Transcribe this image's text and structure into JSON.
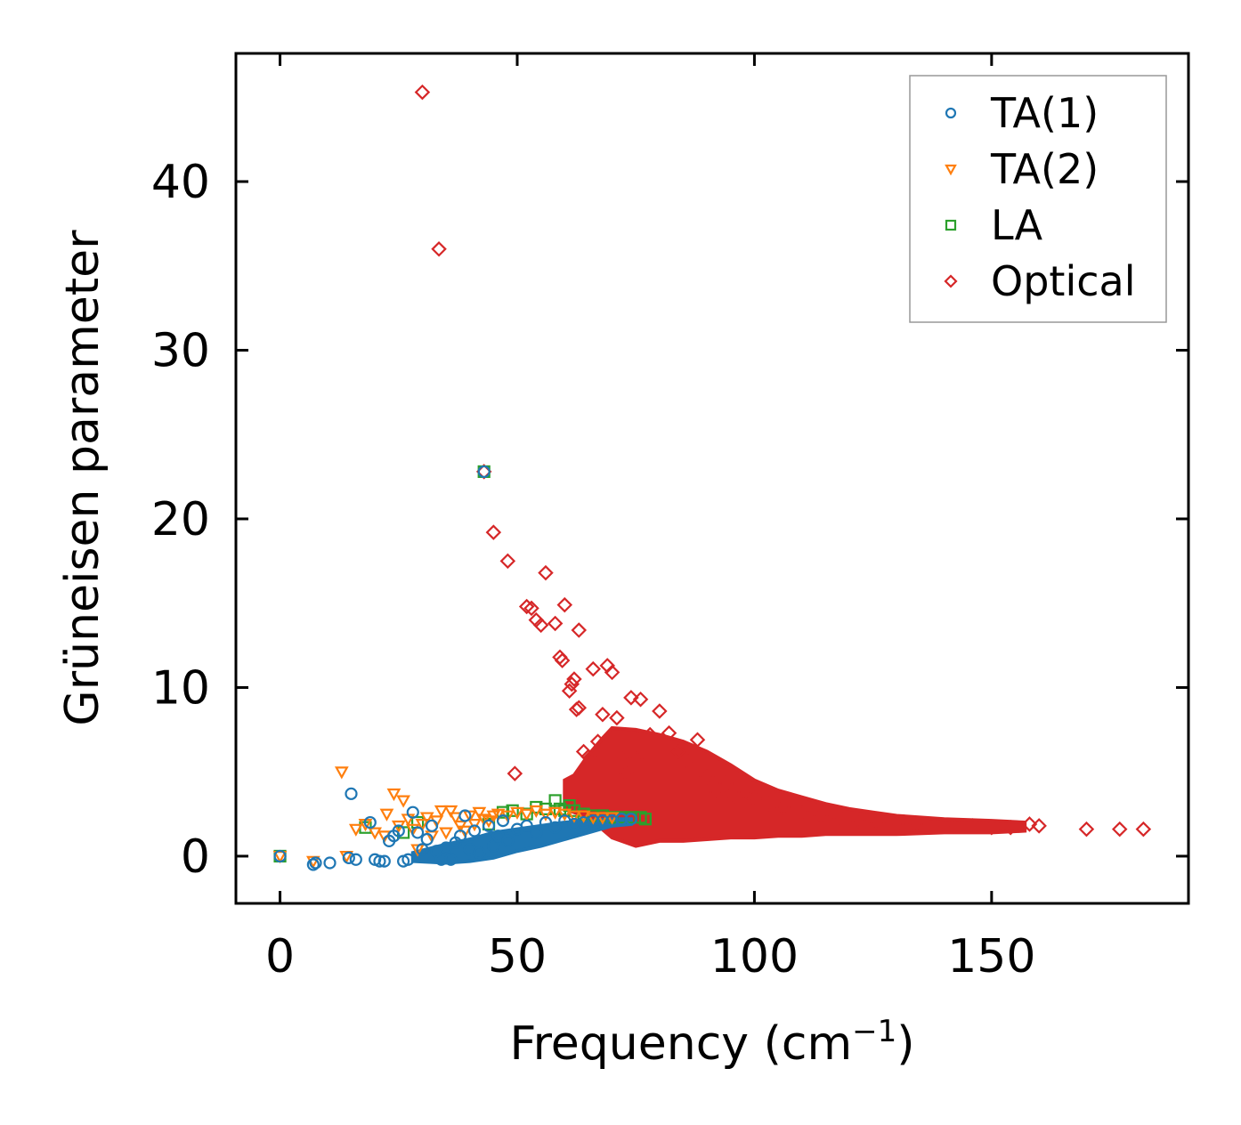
{
  "chart_data": {
    "type": "scatter",
    "title": "",
    "xlabel": "Frequency (cm",
    "xlabel_sup": "−1",
    "xlabel_close": ")",
    "ylabel": "Grüneisen parameter",
    "xlim": [
      -9.3,
      191.5
    ],
    "ylim": [
      -2.8,
      47.6
    ],
    "xticks": [
      0,
      50,
      100,
      150
    ],
    "yticks": [
      0,
      10,
      20,
      30,
      40
    ],
    "legend_position": "top-right",
    "series": [
      {
        "name": "TA(1)",
        "marker": "circle",
        "color": "#1f77b4",
        "points": [
          [
            0,
            0
          ],
          [
            7,
            -0.5
          ],
          [
            7.5,
            -0.4
          ],
          [
            10.5,
            -0.4
          ],
          [
            14.5,
            -0.1
          ],
          [
            15,
            3.7
          ],
          [
            16,
            -0.2
          ],
          [
            19,
            2
          ],
          [
            20,
            -0.2
          ],
          [
            21,
            -0.3
          ],
          [
            22,
            -0.3
          ],
          [
            23,
            0.9
          ],
          [
            24,
            1.2
          ],
          [
            25,
            1.5
          ],
          [
            26,
            -0.3
          ],
          [
            27,
            -0.2
          ],
          [
            28,
            2.6
          ],
          [
            29,
            1.4
          ],
          [
            30,
            0.4
          ],
          [
            31,
            1
          ],
          [
            32,
            1.8
          ],
          [
            33,
            0.3
          ],
          [
            34,
            -0.2
          ],
          [
            35,
            0.5
          ],
          [
            36,
            -0.2
          ],
          [
            37,
            0.8
          ],
          [
            38,
            1.2
          ],
          [
            39,
            2.4
          ],
          [
            40,
            0.4
          ],
          [
            41,
            1.5
          ],
          [
            42,
            0.2
          ],
          [
            43,
            22.8
          ],
          [
            44,
            1.8
          ],
          [
            45,
            0.6
          ],
          [
            46,
            1.2
          ],
          [
            47,
            2.1
          ],
          [
            48,
            0.9
          ],
          [
            50,
            1.6
          ],
          [
            52,
            1.8
          ],
          [
            54,
            1.4
          ],
          [
            56,
            2
          ],
          [
            58,
            1.7
          ],
          [
            60,
            2.1
          ],
          [
            62,
            1.9
          ],
          [
            64,
            2
          ],
          [
            66,
            2.1
          ],
          [
            68,
            2.1
          ],
          [
            70,
            2.1
          ],
          [
            72,
            2.2
          ],
          [
            74,
            2.2
          ]
        ]
      },
      {
        "name": "TA(2)",
        "marker": "triangle-down",
        "color": "#ff7f0e",
        "points": [
          [
            0,
            0
          ],
          [
            7,
            -0.3
          ],
          [
            13,
            5
          ],
          [
            14,
            0
          ],
          [
            16,
            1.6
          ],
          [
            18,
            1.9
          ],
          [
            20,
            1.4
          ],
          [
            22,
            1.2
          ],
          [
            22.5,
            2.5
          ],
          [
            24,
            3.7
          ],
          [
            25,
            1.8
          ],
          [
            26,
            3.3
          ],
          [
            27,
            2.2
          ],
          [
            28,
            1.6
          ],
          [
            29,
            0.4
          ],
          [
            30,
            1.9
          ],
          [
            31,
            2.3
          ],
          [
            32,
            1.2
          ],
          [
            33,
            2.1
          ],
          [
            34,
            2.7
          ],
          [
            35,
            1.4
          ],
          [
            36,
            2.7
          ],
          [
            37,
            2.3
          ],
          [
            38,
            1.8
          ],
          [
            39,
            1.5
          ],
          [
            40,
            2.4
          ],
          [
            41,
            1.9
          ],
          [
            42,
            2.6
          ],
          [
            43,
            2.2
          ],
          [
            44,
            2.1
          ],
          [
            45,
            2.4
          ],
          [
            46,
            2.5
          ],
          [
            48,
            2.4
          ],
          [
            50,
            2.6
          ],
          [
            52,
            2.5
          ],
          [
            54,
            2.7
          ],
          [
            56,
            2.5
          ],
          [
            58,
            2.6
          ],
          [
            60,
            2.5
          ],
          [
            62,
            2.4
          ],
          [
            64,
            2.4
          ],
          [
            66,
            2.3
          ],
          [
            68,
            2.3
          ],
          [
            70,
            2.3
          ]
        ]
      },
      {
        "name": "LA",
        "marker": "square",
        "color": "#2ca02c",
        "points": [
          [
            0,
            0
          ],
          [
            18,
            1.7
          ],
          [
            26,
            1.4
          ],
          [
            29,
            2
          ],
          [
            43,
            22.8
          ],
          [
            44,
            1.9
          ],
          [
            47,
            2.6
          ],
          [
            49,
            2.7
          ],
          [
            52,
            2.5
          ],
          [
            54,
            2.9
          ],
          [
            56,
            2.8
          ],
          [
            58,
            3.3
          ],
          [
            59,
            2.8
          ],
          [
            60,
            2.7
          ],
          [
            61,
            3
          ],
          [
            62,
            2.7
          ],
          [
            64,
            2.5
          ],
          [
            66,
            2.4
          ],
          [
            68,
            2.4
          ],
          [
            70,
            2.3
          ],
          [
            72,
            2.3
          ],
          [
            74,
            2.3
          ],
          [
            76,
            2.3
          ],
          [
            77,
            2.2
          ]
        ]
      },
      {
        "name": "Optical",
        "marker": "diamond",
        "color": "#d62728",
        "points": [
          [
            30,
            45.3
          ],
          [
            33.5,
            36
          ],
          [
            43,
            22.8
          ],
          [
            45,
            19.2
          ],
          [
            48,
            17.5
          ],
          [
            49.5,
            4.9
          ],
          [
            52,
            14.8
          ],
          [
            53,
            14.7
          ],
          [
            54,
            14
          ],
          [
            55,
            13.7
          ],
          [
            56,
            16.8
          ],
          [
            58,
            13.8
          ],
          [
            59,
            11.8
          ],
          [
            59.5,
            11.6
          ],
          [
            60,
            14.9
          ],
          [
            61,
            9.8
          ],
          [
            61.5,
            10.2
          ],
          [
            62,
            10.5
          ],
          [
            62.5,
            8.7
          ],
          [
            63,
            8.8
          ],
          [
            63,
            13.4
          ],
          [
            64,
            6.2
          ],
          [
            65,
            5.9
          ],
          [
            66,
            11.1
          ],
          [
            67,
            6.8
          ],
          [
            68,
            8.4
          ],
          [
            69,
            11.3
          ],
          [
            70,
            10.9
          ],
          [
            71,
            8.2
          ],
          [
            72,
            5.8
          ],
          [
            73,
            4.9
          ],
          [
            74,
            9.4
          ],
          [
            75,
            5.8
          ],
          [
            76,
            9.3
          ],
          [
            78,
            7.2
          ],
          [
            80,
            8.6
          ],
          [
            82,
            7.3
          ],
          [
            84,
            6.2
          ],
          [
            86,
            5.6
          ],
          [
            88,
            6.9
          ],
          [
            90,
            4.7
          ],
          [
            92,
            3.8
          ],
          [
            94,
            4.3
          ],
          [
            96,
            3.5
          ],
          [
            98,
            3.8
          ],
          [
            100,
            3.4
          ],
          [
            103,
            3.1
          ],
          [
            106,
            2.9
          ],
          [
            110,
            2.6
          ],
          [
            114,
            2.4
          ],
          [
            118,
            2.3
          ],
          [
            122,
            2.1
          ],
          [
            126,
            2
          ],
          [
            130,
            1.9
          ],
          [
            134,
            1.9
          ],
          [
            138,
            1.8
          ],
          [
            142,
            1.8
          ],
          [
            146,
            1.8
          ],
          [
            150,
            1.7
          ],
          [
            154,
            1.7
          ],
          [
            158,
            1.9
          ],
          [
            160,
            1.8
          ],
          [
            170,
            1.6
          ],
          [
            177,
            1.6
          ],
          [
            182,
            1.6
          ]
        ]
      }
    ],
    "optical_band": {
      "upper": [
        [
          60,
          4.5
        ],
        [
          62,
          4.8
        ],
        [
          65,
          6
        ],
        [
          68,
          7
        ],
        [
          70,
          7.6
        ],
        [
          75,
          7.5
        ],
        [
          80,
          7.2
        ],
        [
          85,
          6.8
        ],
        [
          90,
          6.2
        ],
        [
          95,
          5.4
        ],
        [
          100,
          4.5
        ],
        [
          105,
          3.9
        ],
        [
          110,
          3.5
        ],
        [
          115,
          3.1
        ],
        [
          120,
          2.8
        ],
        [
          125,
          2.6
        ],
        [
          130,
          2.4
        ],
        [
          140,
          2.2
        ],
        [
          150,
          2.1
        ],
        [
          157,
          2
        ]
      ],
      "lower": [
        [
          60,
          2.8
        ],
        [
          65,
          2.3
        ],
        [
          70,
          1.1
        ],
        [
          75,
          0.6
        ],
        [
          80,
          0.9
        ],
        [
          85,
          0.9
        ],
        [
          90,
          1
        ],
        [
          95,
          1.1
        ],
        [
          100,
          1.1
        ],
        [
          105,
          1.2
        ],
        [
          110,
          1.2
        ],
        [
          115,
          1.3
        ],
        [
          120,
          1.3
        ],
        [
          125,
          1.3
        ],
        [
          130,
          1.3
        ],
        [
          140,
          1.4
        ],
        [
          150,
          1.4
        ],
        [
          157,
          1.5
        ]
      ]
    },
    "ta1_band": {
      "upper": [
        [
          28,
          0.2
        ],
        [
          35,
          0.7
        ],
        [
          40,
          1
        ],
        [
          45,
          1.4
        ],
        [
          50,
          1.6
        ],
        [
          55,
          1.8
        ],
        [
          60,
          2
        ],
        [
          65,
          2.1
        ],
        [
          70,
          2.2
        ],
        [
          74,
          2.2
        ]
      ],
      "lower": [
        [
          28,
          -0.3
        ],
        [
          35,
          -0.4
        ],
        [
          40,
          -0.3
        ],
        [
          45,
          -0.1
        ],
        [
          50,
          0.3
        ],
        [
          55,
          0.6
        ],
        [
          60,
          1
        ],
        [
          65,
          1.4
        ],
        [
          70,
          1.8
        ],
        [
          74,
          1.9
        ]
      ]
    }
  }
}
